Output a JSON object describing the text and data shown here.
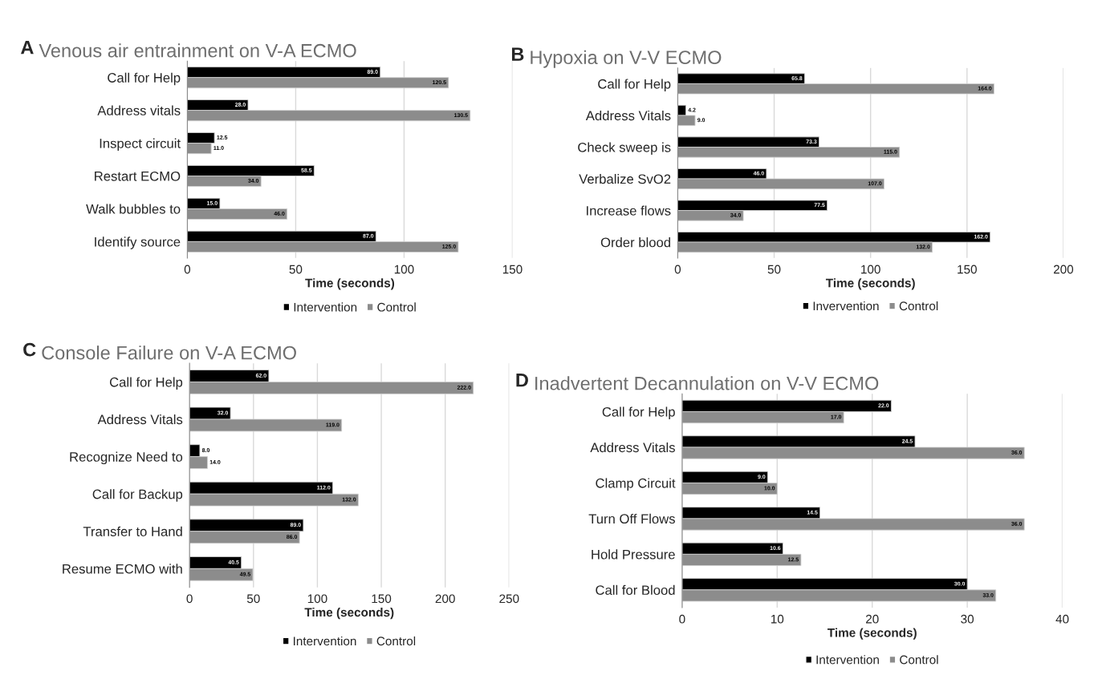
{
  "chart_data": [
    {
      "type": "bar",
      "orientation": "horizontal",
      "title": "Venous air entrainment on V-A ECMO",
      "annotations": [
        "A"
      ],
      "xlabel": "Time (seconds)",
      "categories": [
        "Call for Help",
        "Address vitals",
        "Inspect circuit",
        "Restart ECMO",
        "Walk bubbles to",
        "Identify source"
      ],
      "series": [
        {
          "name": "Intervention",
          "color": "#000000",
          "values": [
            89.0,
            28.0,
            12.5,
            58.5,
            15.0,
            87.0
          ],
          "value_labels": [
            "89.0",
            "28.0",
            "12.5",
            "58.5",
            "15.0",
            "87.0"
          ]
        },
        {
          "name": "Control",
          "color": "#8c8c8c",
          "values": [
            120.5,
            130.5,
            11.0,
            34.0,
            46.0,
            125.0
          ],
          "value_labels": [
            "120.5",
            "130.5",
            "11.0",
            "34.0",
            "46.0",
            "125.0"
          ]
        }
      ],
      "xlim": [
        0,
        150
      ],
      "xticks": [
        0,
        50,
        100,
        150
      ],
      "grid": "x",
      "legend": "bottom"
    },
    {
      "type": "bar",
      "orientation": "horizontal",
      "title": "Hypoxia on V-V ECMO",
      "annotations": [
        "B"
      ],
      "xlabel": "Time (seconds)",
      "categories": [
        "Call for Help",
        "Address Vitals",
        "Check sweep is",
        "Verbalize SvO2",
        "Increase flows",
        "Order blood"
      ],
      "series": [
        {
          "name": "Invervention",
          "color": "#000000",
          "values": [
            65.8,
            4.2,
            73.3,
            46.0,
            77.5,
            162.0
          ],
          "value_labels": [
            "65.8",
            "4.2",
            "73.3",
            "46.0",
            "77.5",
            "162.0"
          ]
        },
        {
          "name": "Control",
          "color": "#8c8c8c",
          "values": [
            164.0,
            9.0,
            115.0,
            107.0,
            34.0,
            132.0
          ],
          "value_labels": [
            "164.0",
            "9.0",
            "115.0",
            "107.0",
            "34.0",
            "132.0"
          ]
        }
      ],
      "xlim": [
        0,
        200
      ],
      "xticks": [
        0,
        50,
        100,
        150,
        200
      ],
      "grid": "x",
      "legend": "bottom"
    },
    {
      "type": "bar",
      "orientation": "horizontal",
      "title": "Console Failure on V-A ECMO",
      "annotations": [
        "C"
      ],
      "xlabel": "Time (seconds)",
      "categories": [
        "Call for Help",
        "Address Vitals",
        "Recognize Need to",
        "Call for Backup",
        "Transfer to Hand",
        "Resume ECMO with"
      ],
      "series": [
        {
          "name": "Intervention",
          "color": "#000000",
          "values": [
            62.0,
            32.0,
            8.0,
            112.0,
            89.0,
            40.5
          ],
          "value_labels": [
            "62.0",
            "32.0",
            "8.0",
            "112.0",
            "89.0",
            "40.5"
          ]
        },
        {
          "name": "Control",
          "color": "#8c8c8c",
          "values": [
            222.0,
            119.0,
            14.0,
            132.0,
            86.0,
            49.5
          ],
          "value_labels": [
            "222.0",
            "119.0",
            "14.0",
            "132.0",
            "86.0",
            "49.5"
          ]
        }
      ],
      "xlim": [
        0,
        250
      ],
      "xticks": [
        0,
        50,
        100,
        150,
        200,
        250
      ],
      "grid": "x",
      "legend": "bottom"
    },
    {
      "type": "bar",
      "orientation": "horizontal",
      "title": "Inadvertent Decannulation on V-V ECMO",
      "annotations": [
        "D"
      ],
      "xlabel": "Time (seconds)",
      "categories": [
        "Call for Help",
        "Address Vitals",
        "Clamp Circuit",
        "Turn Off Flows",
        "Hold Pressure",
        "Call for Blood"
      ],
      "series": [
        {
          "name": "Intervention",
          "color": "#000000",
          "values": [
            22.0,
            24.5,
            9.0,
            14.5,
            10.6,
            30.0
          ],
          "value_labels": [
            "22.0",
            "24.5",
            "9.0",
            "14.5",
            "10.6",
            "30.0"
          ]
        },
        {
          "name": "Control",
          "color": "#8c8c8c",
          "values": [
            17.0,
            36.0,
            10.0,
            36.0,
            12.5,
            33.0
          ],
          "value_labels": [
            "17.0",
            "36.0",
            "10.0",
            "36.0",
            "12.5",
            "33.0"
          ]
        }
      ],
      "xlim": [
        0,
        40
      ],
      "xticks": [
        0,
        10,
        20,
        30,
        40
      ],
      "grid": "x",
      "legend": "bottom"
    }
  ]
}
